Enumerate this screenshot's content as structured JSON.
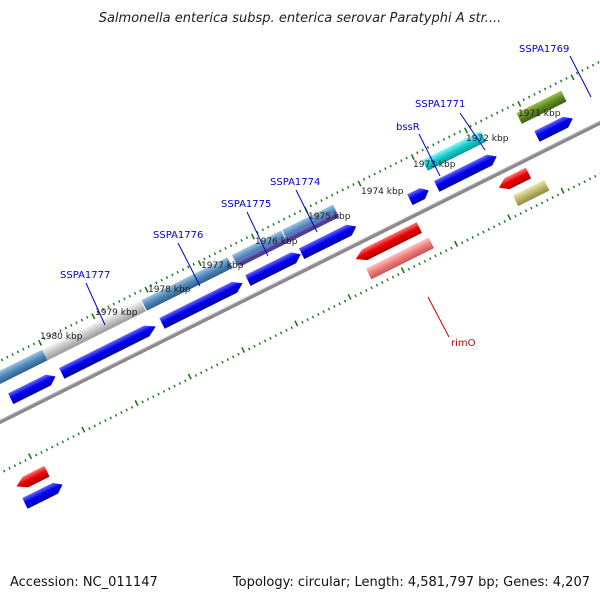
{
  "title": "Salmonella enterica subsp. enterica serovar Paratyphi A str....",
  "footer": {
    "accession": "Accession: NC_011147",
    "summary": "Topology: circular; Length: 4,581,797 bp; Genes: 4,207"
  },
  "kbp_labels": [
    "1980 kbp",
    "1979 kbp",
    "1978 kbp",
    "1977 kbp",
    "1976 kbp",
    "1975 kbp",
    "1974 kbp",
    "1973 kbp",
    "1972 kbp",
    "1971 kbp"
  ],
  "gene_labels": [
    {
      "name": "SSPA1777",
      "color": "#0000cc"
    },
    {
      "name": "SSPA1776",
      "color": "#0000cc"
    },
    {
      "name": "SSPA1775",
      "color": "#0000cc"
    },
    {
      "name": "SSPA1774",
      "color": "#0000cc"
    },
    {
      "name": "bssR",
      "color": "#0000cc"
    },
    {
      "name": "SSPA1771",
      "color": "#0000cc"
    },
    {
      "name": "SSPA1769",
      "color": "#0000cc"
    },
    {
      "name": "rimO",
      "color": "#cc0000"
    }
  ],
  "colors": {
    "backbone": "#888888",
    "tick": "#1a7a1a",
    "cds_forward": "#0000ee",
    "cds_reverse": "#ee0000"
  }
}
